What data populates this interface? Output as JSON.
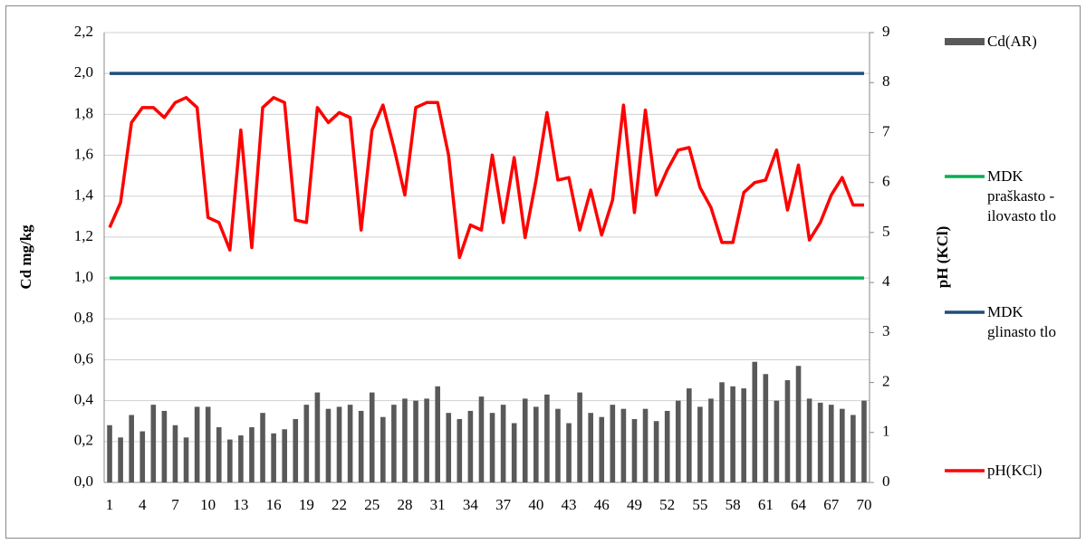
{
  "chart_data": {
    "type": "bar-line",
    "y_label": "Cd mg/kg",
    "y2_label": "pH (KCl)",
    "categories": [
      1,
      null,
      null,
      4,
      null,
      null,
      7,
      null,
      null,
      10,
      null,
      null,
      13,
      null,
      null,
      16,
      null,
      null,
      19,
      null,
      null,
      22,
      null,
      null,
      25,
      null,
      null,
      28,
      null,
      null,
      31,
      null,
      null,
      34,
      null,
      null,
      37,
      null,
      null,
      40,
      null,
      null,
      43,
      null,
      null,
      46,
      null,
      null,
      49,
      null,
      null,
      52,
      null,
      null,
      55,
      null,
      null,
      58,
      null,
      null,
      61,
      null,
      null,
      64,
      null,
      null,
      67,
      null,
      null,
      70
    ],
    "ylim": [
      0,
      2.2
    ],
    "yticks": [
      {
        "value": 0,
        "label": "0,0"
      },
      {
        "value": 0.2,
        "label": "0,2"
      },
      {
        "value": 0.4,
        "label": "0,4"
      },
      {
        "value": 0.6,
        "label": "0,6"
      },
      {
        "value": 0.8,
        "label": "0,8"
      },
      {
        "value": 1.0,
        "label": "1,0"
      },
      {
        "value": 1.2,
        "label": "1,2"
      },
      {
        "value": 1.4,
        "label": "1,4"
      },
      {
        "value": 1.6,
        "label": "1,6"
      },
      {
        "value": 1.8,
        "label": "1,8"
      },
      {
        "value": 2.0,
        "label": "2,0"
      },
      {
        "value": 2.2,
        "label": "2,2"
      }
    ],
    "y2lim": [
      0,
      9
    ],
    "y2ticks": [
      0,
      1,
      2,
      3,
      4,
      5,
      6,
      7,
      8,
      9
    ],
    "grid": true,
    "series": [
      {
        "name": "Cd(AR)",
        "kind": "bar",
        "color": "#595959",
        "values": [
          0.28,
          0.22,
          0.33,
          0.25,
          0.38,
          0.35,
          0.28,
          0.22,
          0.37,
          0.37,
          0.27,
          0.21,
          0.23,
          0.27,
          0.34,
          0.24,
          0.26,
          0.31,
          0.38,
          0.44,
          0.36,
          0.37,
          0.38,
          0.35,
          0.44,
          0.32,
          0.38,
          0.41,
          0.4,
          0.41,
          0.47,
          0.34,
          0.31,
          0.35,
          0.42,
          0.34,
          0.38,
          0.29,
          0.41,
          0.37,
          0.43,
          0.36,
          0.29,
          0.44,
          0.34,
          0.32,
          0.38,
          0.36,
          0.31,
          0.36,
          0.3,
          0.35,
          0.4,
          0.46,
          0.37,
          0.41,
          0.49,
          0.47,
          0.46,
          0.59,
          0.53,
          0.4,
          0.5,
          0.57,
          0.41,
          0.39,
          0.38,
          0.36,
          0.33,
          0.4
        ]
      },
      {
        "name": "MDK praškasto -ilovasto tlo",
        "kind": "line",
        "color": "#00b050",
        "values": [
          1,
          1,
          1,
          1,
          1,
          1,
          1,
          1,
          1,
          1,
          1,
          1,
          1,
          1,
          1,
          1,
          1,
          1,
          1,
          1,
          1,
          1,
          1,
          1,
          1,
          1,
          1,
          1,
          1,
          1,
          1,
          1,
          1,
          1,
          1,
          1,
          1,
          1,
          1,
          1,
          1,
          1,
          1,
          1,
          1,
          1,
          1,
          1,
          1,
          1,
          1,
          1,
          1,
          1,
          1,
          1,
          1,
          1,
          1,
          1,
          1,
          1,
          1,
          1,
          1,
          1,
          1,
          1,
          1,
          1
        ]
      },
      {
        "name": "MDK glinasto tlo",
        "kind": "line",
        "color": "#1f4e79",
        "values": [
          2,
          2,
          2,
          2,
          2,
          2,
          2,
          2,
          2,
          2,
          2,
          2,
          2,
          2,
          2,
          2,
          2,
          2,
          2,
          2,
          2,
          2,
          2,
          2,
          2,
          2,
          2,
          2,
          2,
          2,
          2,
          2,
          2,
          2,
          2,
          2,
          2,
          2,
          2,
          2,
          2,
          2,
          2,
          2,
          2,
          2,
          2,
          2,
          2,
          2,
          2,
          2,
          2,
          2,
          2,
          2,
          2,
          2,
          2,
          2,
          2,
          2,
          2,
          2,
          2,
          2,
          2,
          2,
          2,
          2
        ]
      },
      {
        "name": "pH(KCl)",
        "kind": "line",
        "axis": "y2",
        "color": "#ff0000",
        "values": [
          5.1,
          5.6,
          7.2,
          7.5,
          7.5,
          7.3,
          7.6,
          7.7,
          7.5,
          5.3,
          5.2,
          4.65,
          7.05,
          4.7,
          7.5,
          7.7,
          7.6,
          5.25,
          5.2,
          7.5,
          7.2,
          7.4,
          7.3,
          5.05,
          7.05,
          7.55,
          6.7,
          5.75,
          7.5,
          7.6,
          7.6,
          6.55,
          4.5,
          5.15,
          5.05,
          6.55,
          5.2,
          6.5,
          4.9,
          6.05,
          7.4,
          6.05,
          6.1,
          5.05,
          5.85,
          4.95,
          5.65,
          7.55,
          5.4,
          7.45,
          5.75,
          6.25,
          6.65,
          6.7,
          5.9,
          5.5,
          4.8,
          4.8,
          5.8,
          6.0,
          6.05,
          6.65,
          5.45,
          6.35,
          4.85,
          5.2,
          5.75,
          6.1,
          5.55,
          5.55
        ]
      }
    ]
  }
}
